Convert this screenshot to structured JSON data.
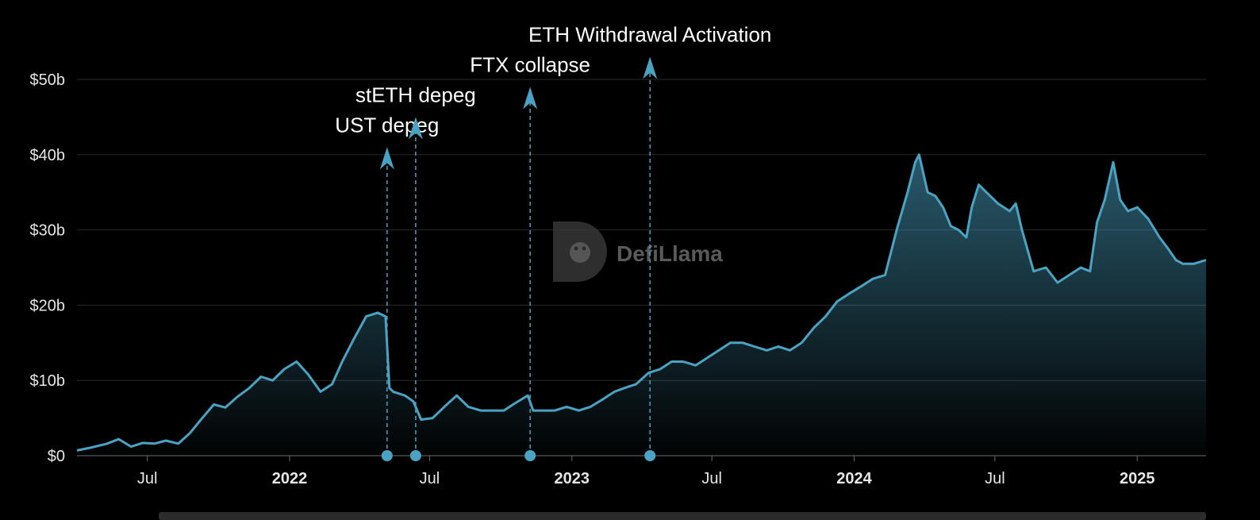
{
  "colors": {
    "line": "#4ba3c3",
    "annotation": "#4ba3c3",
    "background": "#000000"
  },
  "watermark": {
    "text": "DefiLlama",
    "icon": "defillama-logo-icon"
  },
  "chart_data": {
    "type": "area",
    "xlim": [
      "2021-04-01",
      "2025-03-31"
    ],
    "ylim": [
      0,
      50
    ],
    "y_unit": "billions USD",
    "grid": true,
    "yticks": [
      {
        "value": 0,
        "label": "$0"
      },
      {
        "value": 10,
        "label": "$10b"
      },
      {
        "value": 20,
        "label": "$20b"
      },
      {
        "value": 30,
        "label": "$30b"
      },
      {
        "value": 40,
        "label": "$40b"
      },
      {
        "value": 50,
        "label": "$50b"
      }
    ],
    "xticks": [
      {
        "date": "2021-07-01",
        "label": "Jul",
        "bold": false
      },
      {
        "date": "2022-01-01",
        "label": "2022",
        "bold": true
      },
      {
        "date": "2022-07-01",
        "label": "Jul",
        "bold": false
      },
      {
        "date": "2023-01-01",
        "label": "2023",
        "bold": true
      },
      {
        "date": "2023-07-01",
        "label": "Jul",
        "bold": false
      },
      {
        "date": "2024-01-01",
        "label": "2024",
        "bold": true
      },
      {
        "date": "2024-07-01",
        "label": "Jul",
        "bold": false
      },
      {
        "date": "2025-01-01",
        "label": "2025",
        "bold": true
      }
    ],
    "x": [
      "2021-04-01",
      "2021-04-20",
      "2021-05-10",
      "2021-05-25",
      "2021-06-10",
      "2021-06-25",
      "2021-07-10",
      "2021-07-25",
      "2021-08-10",
      "2021-08-25",
      "2021-09-10",
      "2021-09-25",
      "2021-10-10",
      "2021-10-25",
      "2021-11-10",
      "2021-11-25",
      "2021-12-10",
      "2021-12-25",
      "2022-01-10",
      "2022-01-25",
      "2022-02-10",
      "2022-02-25",
      "2022-03-10",
      "2022-03-25",
      "2022-04-10",
      "2022-04-25",
      "2022-05-05",
      "2022-05-10",
      "2022-05-15",
      "2022-05-30",
      "2022-06-10",
      "2022-06-20",
      "2022-07-05",
      "2022-07-20",
      "2022-08-05",
      "2022-08-20",
      "2022-09-05",
      "2022-09-20",
      "2022-10-05",
      "2022-10-20",
      "2022-11-05",
      "2022-11-12",
      "2022-11-25",
      "2022-12-10",
      "2022-12-25",
      "2023-01-10",
      "2023-01-25",
      "2023-02-10",
      "2023-02-25",
      "2023-03-10",
      "2023-03-25",
      "2023-04-10",
      "2023-04-25",
      "2023-05-10",
      "2023-05-25",
      "2023-06-10",
      "2023-06-25",
      "2023-07-10",
      "2023-07-25",
      "2023-08-10",
      "2023-08-25",
      "2023-09-10",
      "2023-09-25",
      "2023-10-10",
      "2023-10-25",
      "2023-11-10",
      "2023-11-25",
      "2023-12-10",
      "2023-12-25",
      "2024-01-10",
      "2024-01-25",
      "2024-02-10",
      "2024-02-25",
      "2024-03-10",
      "2024-03-20",
      "2024-03-25",
      "2024-04-05",
      "2024-04-15",
      "2024-04-25",
      "2024-05-05",
      "2024-05-15",
      "2024-05-25",
      "2024-06-01",
      "2024-06-10",
      "2024-06-25",
      "2024-07-05",
      "2024-07-20",
      "2024-07-28",
      "2024-08-05",
      "2024-08-20",
      "2024-09-05",
      "2024-09-20",
      "2024-10-05",
      "2024-10-20",
      "2024-11-01",
      "2024-11-10",
      "2024-11-20",
      "2024-12-01",
      "2024-12-10",
      "2024-12-20",
      "2025-01-01",
      "2025-01-15",
      "2025-01-30",
      "2025-02-10",
      "2025-02-20",
      "2025-03-01",
      "2025-03-15",
      "2025-03-31"
    ],
    "series": [
      {
        "values": [
          0.7,
          1.1,
          1.6,
          2.2,
          1.2,
          1.7,
          1.6,
          2.0,
          1.6,
          3.0,
          5.0,
          6.8,
          6.4,
          7.8,
          9.0,
          10.5,
          10.0,
          11.5,
          12.5,
          10.8,
          8.5,
          9.5,
          12.5,
          15.5,
          18.5,
          19.0,
          18.5,
          9.0,
          8.5,
          8.0,
          7.2,
          4.8,
          5.0,
          6.5,
          8.0,
          6.5,
          6.0,
          6.0,
          6.0,
          7.0,
          8.0,
          6.0,
          6.0,
          6.0,
          6.5,
          6.0,
          6.5,
          7.5,
          8.5,
          9.0,
          9.5,
          11.0,
          11.5,
          12.5,
          12.5,
          12.0,
          13.0,
          14.0,
          15.0,
          15.0,
          14.5,
          14.0,
          14.5,
          14.0,
          15.0,
          17.0,
          18.5,
          20.5,
          21.5,
          22.5,
          23.5,
          24.0,
          30.0,
          35.0,
          39.0,
          40.0,
          35.0,
          34.5,
          33.0,
          30.5,
          30.0,
          29.0,
          33.0,
          36.0,
          34.5,
          33.5,
          32.5,
          33.5,
          30.0,
          24.5,
          25.0,
          23.0,
          24.0,
          25.0,
          24.5,
          31.0,
          34.0,
          39.0,
          34.0,
          32.5,
          33.0,
          31.5,
          29.0,
          27.5,
          26.0,
          25.5,
          25.5,
          26.0
        ]
      }
    ],
    "annotations": [
      {
        "date": "2022-05-07",
        "label": "UST depeg",
        "arrow_top": 41
      },
      {
        "date": "2022-06-13",
        "label": "stETH depeg",
        "arrow_top": 45
      },
      {
        "date": "2022-11-08",
        "label": "FTX collapse",
        "arrow_top": 49
      },
      {
        "date": "2023-04-12",
        "label": "ETH Withdrawal Activation",
        "arrow_top": 53
      }
    ]
  }
}
